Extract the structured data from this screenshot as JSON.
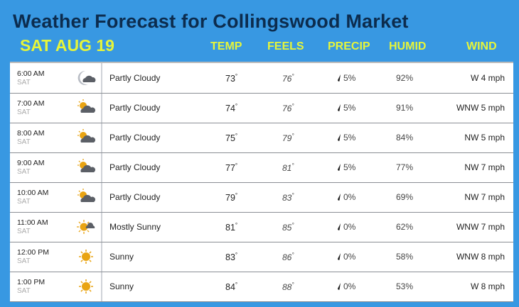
{
  "title": "Weather Forecast for Collingswood Market",
  "date": "SAT AUG 19",
  "headers": {
    "temp": "TEMP",
    "feels": "FEELS",
    "precip": "PRECIP",
    "humid": "HUMID",
    "wind": "WIND"
  },
  "colors": {
    "background": "#3898e2",
    "title": "#0c2c4e",
    "accent": "#e6f53a"
  },
  "rows": [
    {
      "time": "6:00 AM",
      "day": "SAT",
      "icon": "night-partly-cloudy-icon",
      "condition": "Partly Cloudy",
      "temp": "73",
      "feels": "76",
      "precip": "5%",
      "humid": "92%",
      "wind": "W 4 mph"
    },
    {
      "time": "7:00 AM",
      "day": "SAT",
      "icon": "partly-cloudy-icon",
      "condition": "Partly Cloudy",
      "temp": "74",
      "feels": "76",
      "precip": "5%",
      "humid": "91%",
      "wind": "WNW 5 mph"
    },
    {
      "time": "8:00 AM",
      "day": "SAT",
      "icon": "partly-cloudy-icon",
      "condition": "Partly Cloudy",
      "temp": "75",
      "feels": "79",
      "precip": "5%",
      "humid": "84%",
      "wind": "NW 5 mph"
    },
    {
      "time": "9:00 AM",
      "day": "SAT",
      "icon": "partly-cloudy-icon",
      "condition": "Partly Cloudy",
      "temp": "77",
      "feels": "81",
      "precip": "5%",
      "humid": "77%",
      "wind": "NW 7 mph"
    },
    {
      "time": "10:00 AM",
      "day": "SAT",
      "icon": "partly-cloudy-icon",
      "condition": "Partly Cloudy",
      "temp": "79",
      "feels": "83",
      "precip": "0%",
      "humid": "69%",
      "wind": "NW 7 mph"
    },
    {
      "time": "11:00 AM",
      "day": "SAT",
      "icon": "mostly-sunny-icon",
      "condition": "Mostly Sunny",
      "temp": "81",
      "feels": "85",
      "precip": "0%",
      "humid": "62%",
      "wind": "WNW 7 mph"
    },
    {
      "time": "12:00 PM",
      "day": "SAT",
      "icon": "sun-icon",
      "condition": "Sunny",
      "temp": "83",
      "feels": "86",
      "precip": "0%",
      "humid": "58%",
      "wind": "WNW 8 mph"
    },
    {
      "time": "1:00 PM",
      "day": "SAT",
      "icon": "sun-icon",
      "condition": "Sunny",
      "temp": "84",
      "feels": "88",
      "precip": "0%",
      "humid": "53%",
      "wind": "W 8 mph"
    }
  ]
}
